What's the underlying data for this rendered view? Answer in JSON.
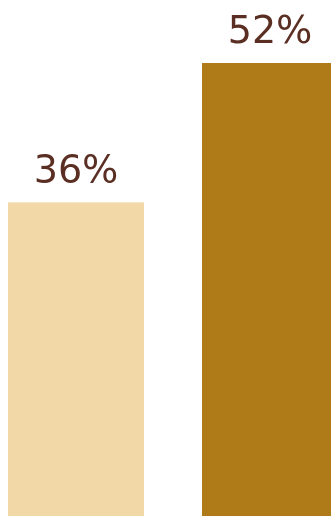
{
  "chart_data": {
    "type": "bar",
    "categories": [
      "",
      ""
    ],
    "values": [
      36,
      52
    ],
    "value_labels": [
      "36%",
      "52%"
    ],
    "ylim": [
      0,
      52
    ],
    "grid": false,
    "colors": [
      "#f1d8a6",
      "#af7a18"
    ],
    "label_color": "#5a2e22"
  }
}
